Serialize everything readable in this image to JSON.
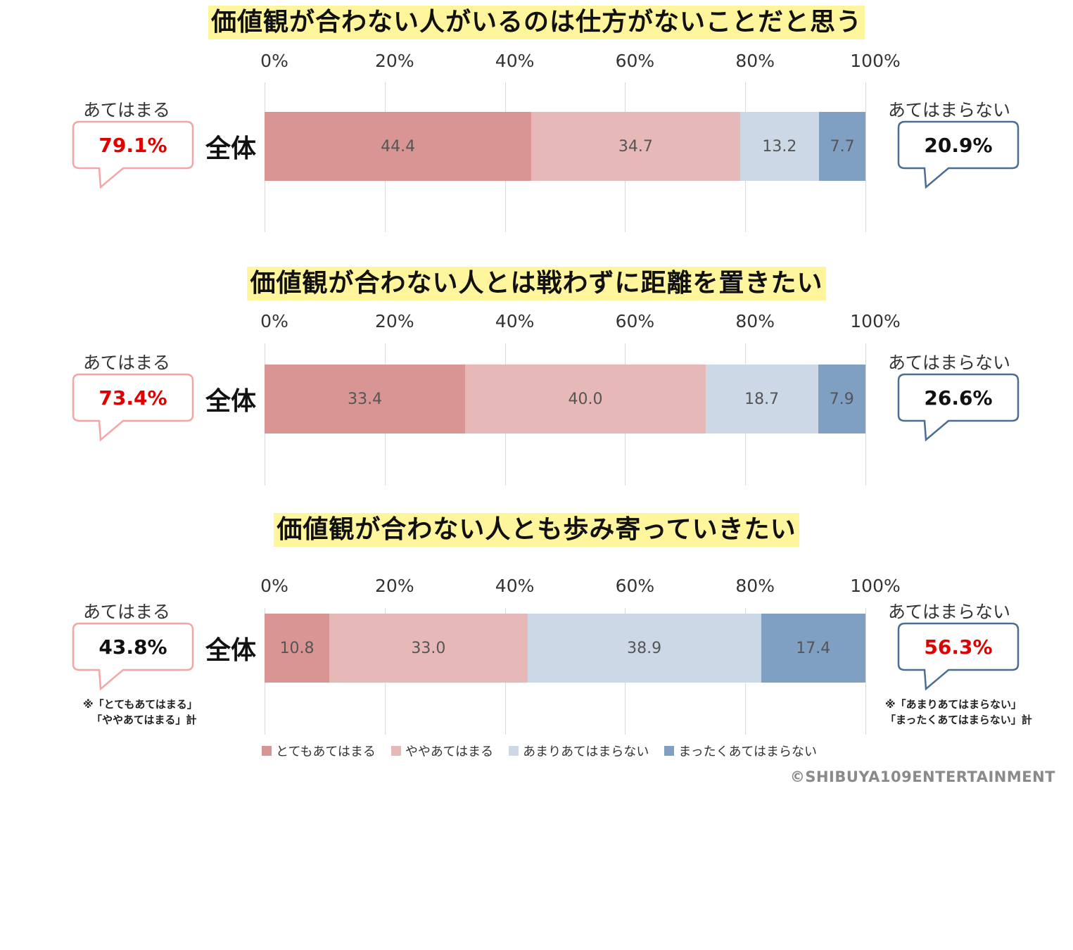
{
  "chart_data": [
    {
      "type": "bar",
      "orientation": "horizontal-stacked",
      "title": "価値観が合わない人がいるのは仕方がないことだと思う",
      "categories": [
        "全体"
      ],
      "series": [
        {
          "name": "とてもあてはまる",
          "values": [
            44.4
          ]
        },
        {
          "name": "ややあてはまる",
          "values": [
            34.7
          ]
        },
        {
          "name": "あまりあてはまらない",
          "values": [
            13.2
          ]
        },
        {
          "name": "まったくあてはまらない",
          "values": [
            7.7
          ]
        }
      ],
      "xlim": [
        0,
        100
      ],
      "xticks": [
        "0%",
        "20%",
        "40%",
        "60%",
        "80%",
        "100%"
      ],
      "summary": {
        "agree_label": "あてはまる",
        "agree_value": "79.1%",
        "disagree_label": "あてはまらない",
        "disagree_value": "20.9%",
        "highlight": "agree"
      }
    },
    {
      "type": "bar",
      "orientation": "horizontal-stacked",
      "title": "価値観が合わない人とは戦わずに距離を置きたい",
      "categories": [
        "全体"
      ],
      "series": [
        {
          "name": "とてもあてはまる",
          "values": [
            33.4
          ]
        },
        {
          "name": "ややあてはまる",
          "values": [
            40.0
          ]
        },
        {
          "name": "あまりあてはまらない",
          "values": [
            18.7
          ]
        },
        {
          "name": "まったくあてはまらない",
          "values": [
            7.9
          ]
        }
      ],
      "xlim": [
        0,
        100
      ],
      "xticks": [
        "0%",
        "20%",
        "40%",
        "60%",
        "80%",
        "100%"
      ],
      "summary": {
        "agree_label": "あてはまる",
        "agree_value": "73.4%",
        "disagree_label": "あてはまらない",
        "disagree_value": "26.6%",
        "highlight": "agree"
      }
    },
    {
      "type": "bar",
      "orientation": "horizontal-stacked",
      "title": "価値観が合わない人とも歩み寄っていきたい",
      "categories": [
        "全体"
      ],
      "series": [
        {
          "name": "とてもあてはまる",
          "values": [
            10.8
          ]
        },
        {
          "name": "ややあてはまる",
          "values": [
            33.0
          ]
        },
        {
          "name": "あまりあてはまらない",
          "values": [
            38.9
          ]
        },
        {
          "name": "まったくあてはまらない",
          "values": [
            17.4
          ]
        }
      ],
      "xlim": [
        0,
        100
      ],
      "xticks": [
        "0%",
        "20%",
        "40%",
        "60%",
        "80%",
        "100%"
      ],
      "summary": {
        "agree_label": "あてはまる",
        "agree_value": "43.8%",
        "disagree_label": "あてはまらない",
        "disagree_value": "56.3%",
        "highlight": "disagree"
      }
    }
  ],
  "colors": {
    "series": [
      "#d99594",
      "#e6b8b7",
      "#cdd8e7",
      "#7f9fc3"
    ],
    "agree_border": "#f4a5a5",
    "disagree_border": "#4a6d93",
    "highlight_text": "#e00000",
    "normal_text": "#111111",
    "title_bg": "#fff59d"
  },
  "notes": {
    "agree_line1": "※「とてもあてはまる」",
    "agree_line2": "「ややあてはまる」計",
    "disagree_line1": "※「あまりあてはまらない」",
    "disagree_line2": "「まったくあてはまらない」計"
  },
  "legend": [
    "とてもあてはまる",
    "ややあてはまる",
    "あまりあてはまらない",
    "まったくあてはまらない"
  ],
  "copyright": "©SHIBUYA109ENTERTAINMENT"
}
